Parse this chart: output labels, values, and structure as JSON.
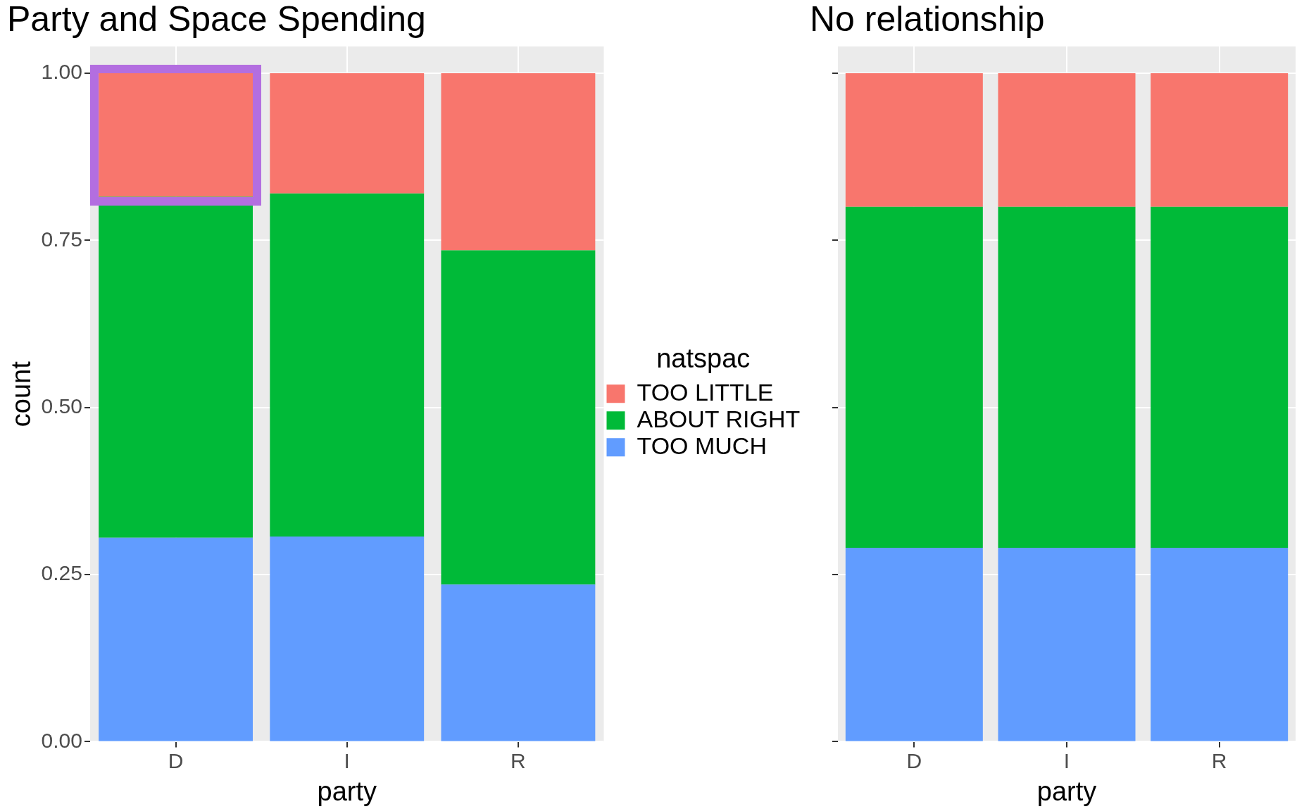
{
  "chart_data": [
    {
      "type": "bar",
      "title": "Party and Space Spending",
      "xlabel": "party",
      "ylabel": "count",
      "legend_title": "natspac",
      "categories": [
        "D",
        "I",
        "R"
      ],
      "stacked": true,
      "ylim": [
        0,
        1.04
      ],
      "yticks": [
        {
          "value": 0,
          "label": "0.00"
        },
        {
          "value": 0.25,
          "label": "0.25"
        },
        {
          "value": 0.5,
          "label": "0.50"
        },
        {
          "value": 0.75,
          "label": "0.75"
        },
        {
          "value": 1,
          "label": "1.00"
        }
      ],
      "grid": true,
      "legend": "right",
      "series": [
        {
          "name": "TOO MUCH",
          "color": "#619cff",
          "values": [
            0.305,
            0.307,
            0.235
          ]
        },
        {
          "name": "ABOUT RIGHT",
          "color": "#00ba38",
          "values": [
            0.51,
            0.513,
            0.5
          ]
        },
        {
          "name": "TOO LITTLE",
          "color": "#f8766d",
          "values": [
            0.185,
            0.18,
            0.265
          ]
        }
      ]
    },
    {
      "type": "bar",
      "title": "No relationship",
      "xlabel": "party",
      "categories": [
        "D",
        "I",
        "R"
      ],
      "stacked": true,
      "ylim": [
        0,
        1.04
      ],
      "yticks": [
        {
          "value": 0,
          "label": null
        },
        {
          "value": 0.25,
          "label": null
        },
        {
          "value": 0.5,
          "label": null
        },
        {
          "value": 0.75,
          "label": null
        },
        {
          "value": 1,
          "label": null
        }
      ],
      "grid": true,
      "tick_labels": "x",
      "legend": false,
      "series": [
        {
          "color": "#619cff",
          "values": [
            0.29,
            0.29,
            0.29
          ]
        },
        {
          "color": "#00ba38",
          "values": [
            0.51,
            0.51,
            0.51
          ]
        },
        {
          "color": "#f8766d",
          "values": [
            0.2,
            0.2,
            0.2
          ]
        }
      ]
    }
  ]
}
